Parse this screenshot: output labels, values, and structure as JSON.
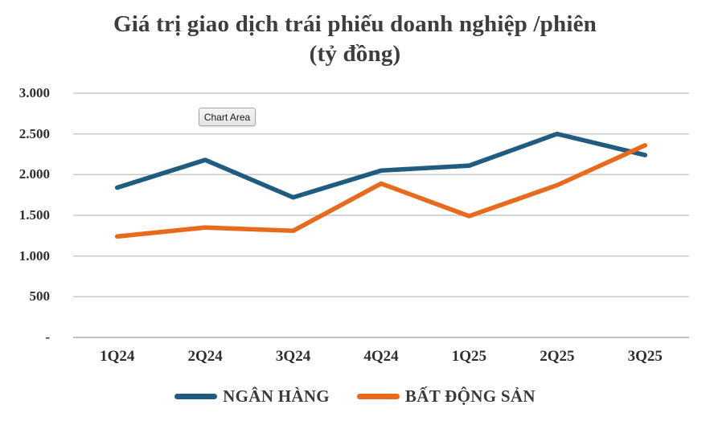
{
  "title": {
    "line1": "Giá trị giao dịch trái phiếu doanh nghiệp /phiên",
    "line2": "(tỷ đồng)"
  },
  "tooltip": {
    "label": "Chart Area"
  },
  "chart_data": {
    "type": "line",
    "title": "Giá trị giao dịch trái phiếu doanh nghiệp /phiên (tỷ đồng)",
    "categories": [
      "1Q24",
      "2Q24",
      "3Q24",
      "4Q24",
      "1Q25",
      "2Q25",
      "3Q25"
    ],
    "series": [
      {
        "name": "NGÂN HÀNG",
        "color": "#1F5C7F",
        "values": [
          1840,
          2180,
          1720,
          2050,
          2110,
          2500,
          2240
        ]
      },
      {
        "name": "BẤT ĐỘNG SẢN",
        "color": "#E76A1D",
        "values": [
          1240,
          1350,
          1310,
          1890,
          1490,
          1870,
          2360
        ]
      }
    ],
    "y_axis": {
      "min": 0,
      "max": 3000,
      "tick_interval": 500,
      "tick_labels": [
        "-",
        "500",
        "1.000",
        "1.500",
        "2.000",
        "2.500",
        "3.000"
      ]
    },
    "grid": {
      "horizontal": true,
      "color": "#C9C9C9",
      "axis_color": "#ADADAD"
    },
    "legend": {
      "position": "bottom"
    }
  }
}
